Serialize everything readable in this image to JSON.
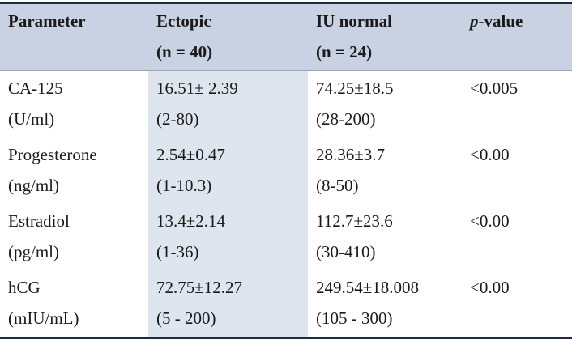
{
  "table": {
    "header": [
      [
        "Parameter"
      ],
      [
        "Ectopic",
        "(n = 40)"
      ],
      [
        "IU normal",
        "(n = 24)"
      ],
      {
        "italic": "p",
        "text": "-value"
      }
    ],
    "rows": [
      [
        [
          "CA-125",
          "(U/ml)"
        ],
        [
          "16.51± 2.39",
          "(2-80)"
        ],
        [
          "74.25±18.5",
          "(28-200)"
        ],
        [
          "<0.005"
        ]
      ],
      [
        [
          "Progesterone",
          "(ng/ml)"
        ],
        [
          "2.54±0.47",
          "(1-10.3)"
        ],
        [
          "28.36±3.7",
          "(8-50)"
        ],
        [
          "<0.00"
        ]
      ],
      [
        [
          "Estradiol",
          "(pg/ml)"
        ],
        [
          "13.4±2.14",
          "(1-36)"
        ],
        [
          "112.7±23.6",
          "(30-410)"
        ],
        [
          "<0.00"
        ]
      ],
      [
        [
          "hCG",
          "(mIU/mL)"
        ],
        [
          "72.75±12.27",
          "(5 - 200)"
        ],
        [
          "249.54±18.008",
          "(105 - 300)"
        ],
        [
          "<0.00"
        ]
      ]
    ]
  }
}
